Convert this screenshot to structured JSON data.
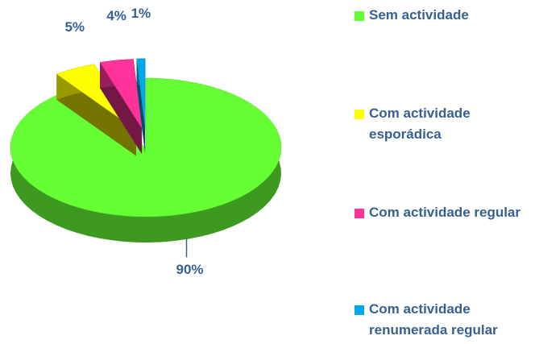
{
  "chart_data": {
    "type": "pie",
    "categories": [
      "Sem actividade",
      "Com actividade esporádica",
      "Com actividade regular",
      "Com actividade renumerada regular"
    ],
    "values": [
      90,
      5,
      4,
      1
    ],
    "value_labels": [
      "90%",
      "5%",
      "4%",
      "1%"
    ],
    "colors": [
      "#66ff33",
      "#ffff00",
      "#ff3399",
      "#00a8e8"
    ],
    "legend": "right"
  }
}
